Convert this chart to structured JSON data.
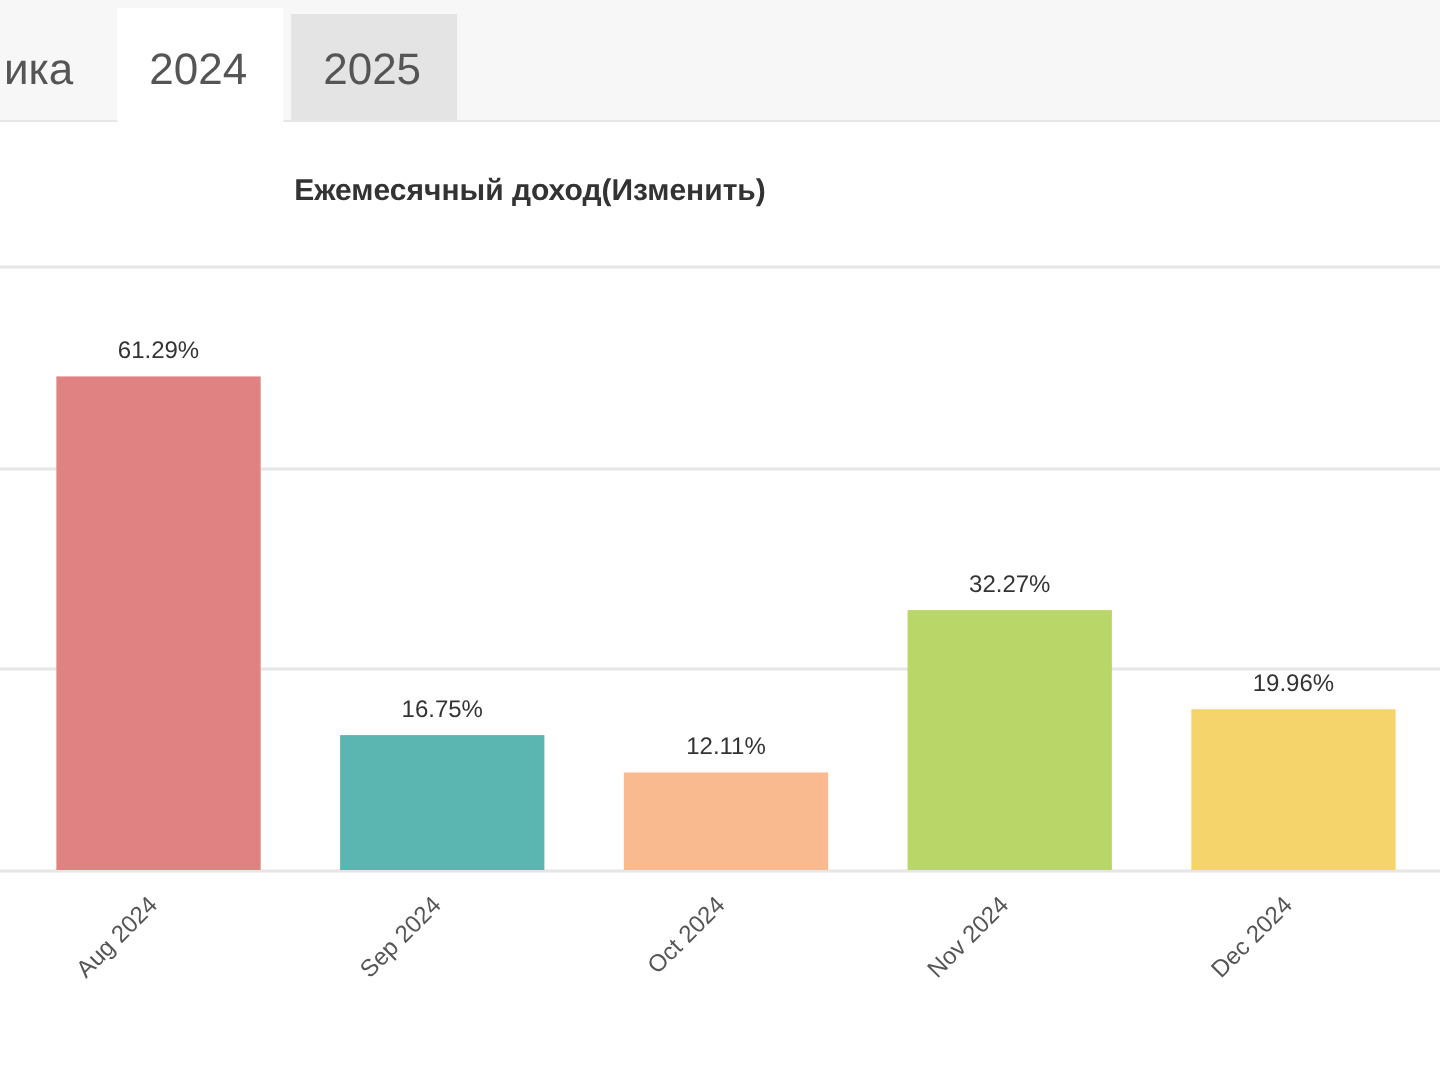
{
  "chart_data": {
    "type": "bar",
    "title": "Ежемесячный доход(Изменить)",
    "annotations": [
      "ика",
      "2024",
      "2025"
    ],
    "categories": [
      "Aug 2024",
      "Sep 2024",
      "Oct 2024",
      "Nov 2024",
      "Dec 2024"
    ],
    "values": [
      61.29,
      16.75,
      12.11,
      32.27,
      19.96
    ],
    "colors": [
      "#e08282",
      "#5bb5b1",
      "#f9ba90",
      "#b9d668",
      "#f5d46c"
    ],
    "value_labels": [
      "61.29%",
      "16.75%",
      "12.11%",
      "32.27%",
      "19.96%"
    ],
    "ylim": [
      0,
      75
    ],
    "yticks": [
      {
        "value": 0,
        "label": null
      },
      {
        "value": 25,
        "label": null
      },
      {
        "value": 50,
        "label": null
      },
      {
        "value": 75,
        "label": null
      }
    ],
    "grid": "y",
    "tick_labels": "x"
  }
}
